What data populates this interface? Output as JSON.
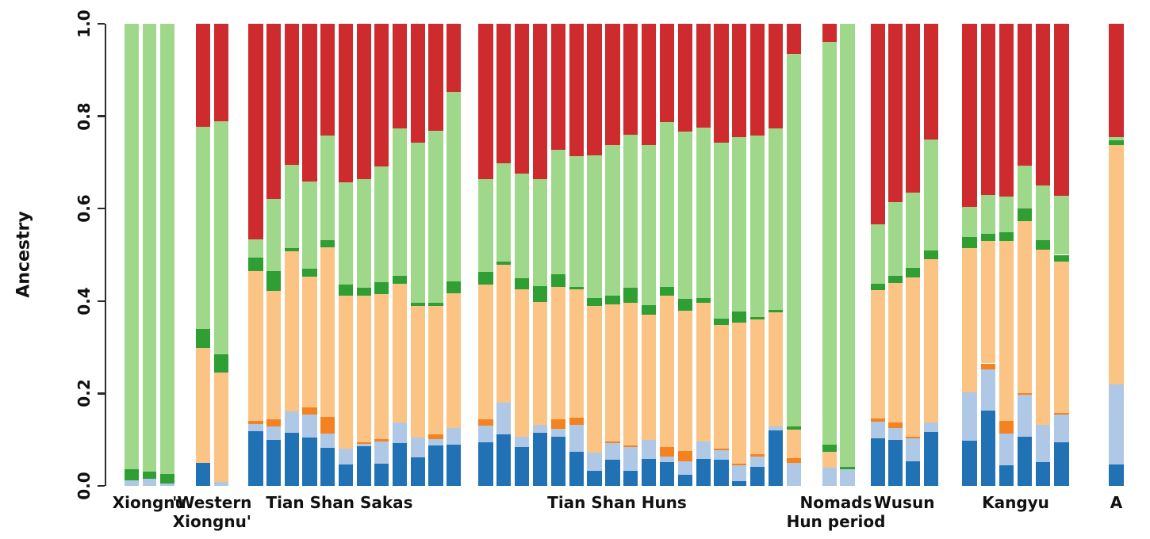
{
  "figure": {
    "background": "#ffffff"
  },
  "chart_data": {
    "type": "bar",
    "stacked": true,
    "orientation": "vertical",
    "title": "",
    "xlabel": "",
    "ylabel": "Ancestry",
    "ylim": [
      0,
      1
    ],
    "grid": false,
    "legend": "none",
    "ytick_labels": [
      "0.0",
      "0.2",
      "0.4",
      "0.6",
      "0.8",
      "1.0"
    ],
    "components": [
      {
        "name": "component-dark-blue",
        "color": "#2171B5"
      },
      {
        "name": "component-light-blue",
        "color": "#AEC8E5"
      },
      {
        "name": "component-orange",
        "color": "#F58220"
      },
      {
        "name": "component-light-orange",
        "color": "#FBC384"
      },
      {
        "name": "component-dark-green",
        "color": "#2F9E33"
      },
      {
        "name": "component-light-green",
        "color": "#A0D88B"
      },
      {
        "name": "component-red",
        "color": "#CE2B2E"
      }
    ],
    "groups": [
      {
        "label": "Xiongnu",
        "label_lines": [
          "Xiongnu"
        ],
        "bars": [
          [
            0,
            0.012,
            0,
            0,
            0.024,
            0.964,
            0
          ],
          [
            0,
            0.016,
            0,
            0,
            0.015,
            0.969,
            0
          ],
          [
            0,
            0.005,
            0,
            0,
            0.02,
            0.975,
            0
          ]
        ]
      },
      {
        "label": "'Western Xiongnu'",
        "label_lines": [
          "'Western",
          "Xiongnu'"
        ],
        "bars": [
          [
            0.05,
            0,
            0,
            0.248,
            0.041,
            0.438,
            0.223
          ],
          [
            0,
            0.008,
            0,
            0.238,
            0.039,
            0.504,
            0.211
          ]
        ]
      },
      {
        "label": "Tian Shan Sakas",
        "label_lines": [
          "Tian Shan Sakas"
        ],
        "bars": [
          [
            0.118,
            0.016,
            0.007,
            0.323,
            0.03,
            0.04,
            0.466
          ],
          [
            0.1,
            0.028,
            0.016,
            0.2785,
            0.0425,
            0.156,
            0.379
          ],
          [
            0.115,
            0.047,
            0,
            0.346,
            0.007,
            0.18,
            0.305
          ],
          [
            0.105,
            0.05,
            0.015,
            0.2825,
            0.017,
            0.1885,
            0.342
          ],
          [
            0.082,
            0.032,
            0.035,
            0.368,
            0.015,
            0.227,
            0.241
          ],
          [
            0.046,
            0.035,
            0,
            0.331,
            0.023,
            0.222,
            0.343
          ],
          [
            0.086,
            0.005,
            0.004,
            0.317,
            0.016,
            0.236,
            0.336
          ],
          [
            0.048,
            0.0475,
            0.0055,
            0.3145,
            0.0245,
            0.251,
            0.309
          ],
          [
            0.092,
            0.046,
            0,
            0.299,
            0.018,
            0.319,
            0.226
          ],
          [
            0.061,
            0.044,
            0,
            0.284,
            0.008,
            0.345,
            0.258
          ],
          [
            0.088,
            0.014,
            0.01,
            0.277,
            0.008,
            0.371,
            0.232
          ],
          [
            0.089,
            0.036,
            0,
            0.292,
            0.0255,
            0.4105,
            0.147
          ]
        ]
      },
      {
        "label": "Tian Shan Huns",
        "label_lines": [
          "Tian Shan Huns"
        ],
        "bars": [
          [
            0.094,
            0.037,
            0.0125,
            0.2915,
            0.0275,
            0.2015,
            0.336
          ],
          [
            0.112,
            0.068,
            0,
            0.298,
            0.008,
            0.212,
            0.302
          ],
          [
            0.084,
            0.023,
            0,
            0.3185,
            0.0245,
            0.225,
            0.325
          ],
          [
            0.115,
            0.017,
            0,
            0.2665,
            0.0345,
            0.23,
            0.337
          ],
          [
            0.107,
            0.017,
            0.0195,
            0.2875,
            0.027,
            0.269,
            0.273
          ],
          [
            0.0735,
            0.0585,
            0.015,
            0.2785,
            0.0055,
            0.282,
            0.287
          ],
          [
            0.0325,
            0.04,
            0,
            0.3165,
            0.0175,
            0.3085,
            0.285
          ],
          [
            0.0565,
            0.0355,
            0.0045,
            0.296,
            0.0195,
            0.326,
            0.262
          ],
          [
            0.0325,
            0.0515,
            0.004,
            0.309,
            0.0325,
            0.3305,
            0.24
          ],
          [
            0.0575,
            0.042,
            0,
            0.2715,
            0.02,
            0.347,
            0.262
          ],
          [
            0.051,
            0.0125,
            0.0205,
            0.327,
            0.02,
            0.356,
            0.213
          ],
          [
            0.0235,
            0.03,
            0.0215,
            0.3045,
            0.026,
            0.3615,
            0.233
          ],
          [
            0.0575,
            0.039,
            0,
            0.3005,
            0.0095,
            0.3695,
            0.224
          ],
          [
            0.0565,
            0.02,
            0.004,
            0.2675,
            0.0145,
            0.3795,
            0.258
          ],
          [
            0.0095,
            0.0345,
            0.004,
            0.3045,
            0.0255,
            0.377,
            0.245
          ],
          [
            0.0405,
            0.023,
            0.0045,
            0.293,
            0.0045,
            0.3935,
            0.241
          ],
          [
            0.1205,
            0.0075,
            0,
            0.2475,
            0.0055,
            0.393,
            0.226
          ],
          [
            0,
            0.0495,
            0.01,
            0.063,
            0.0055,
            0.8075,
            0.0645
          ]
        ]
      },
      {
        "label": "Nomads Hun period",
        "label_lines": [
          "Nomads",
          "Hun period"
        ],
        "bars": [
          [
            0,
            0.0395,
            0,
            0.034,
            0.015,
            0.8715,
            0.04
          ],
          [
            0,
            0.0365,
            0,
            0,
            0.004,
            0.9595,
            0
          ]
        ]
      },
      {
        "label": "Wusun",
        "label_lines": [
          "Wusun"
        ],
        "bars": [
          [
            0.1035,
            0.036,
            0.0055,
            0.2787,
            0.0132,
            0.1297,
            0.4334
          ],
          [
            0.0995,
            0.0257,
            0.0115,
            0.3019,
            0.0154,
            0.16,
            0.386
          ],
          [
            0.0537,
            0.0487,
            0.004,
            0.3447,
            0.0201,
            0.164,
            0.3648
          ],
          [
            0.1166,
            0.0212,
            0,
            0.3523,
            0.0194,
            0.2398,
            0.2507
          ]
        ]
      },
      {
        "label": "Kangyu",
        "label_lines": [
          "Kangyu"
        ],
        "bars": [
          [
            0.0978,
            0.1046,
            0,
            0.3126,
            0.023,
            0.066,
            0.396
          ],
          [
            0.1624,
            0.0896,
            0.013,
            0.265,
            0.0155,
            0.084,
            0.3705
          ],
          [
            0.0451,
            0.0686,
            0.0275,
            0.3888,
            0.0184,
            0.0772,
            0.3744
          ],
          [
            0.1063,
            0.0904,
            0.004,
            0.3717,
            0.0274,
            0.0927,
            0.3075
          ],
          [
            0.052,
            0.0801,
            0,
            0.3789,
            0.02,
            0.1186,
            0.3504
          ],
          [
            0.0949,
            0.059,
            0.0039,
            0.3272,
            0.015,
            0.1284,
            0.3716
          ]
        ]
      },
      {
        "label": "A",
        "label_lines": [
          "A"
        ],
        "bars": [
          [
            0.0463,
            0.1737,
            0,
            0.517,
            0.0104,
            0.0079,
            0.2447
          ]
        ]
      }
    ]
  }
}
